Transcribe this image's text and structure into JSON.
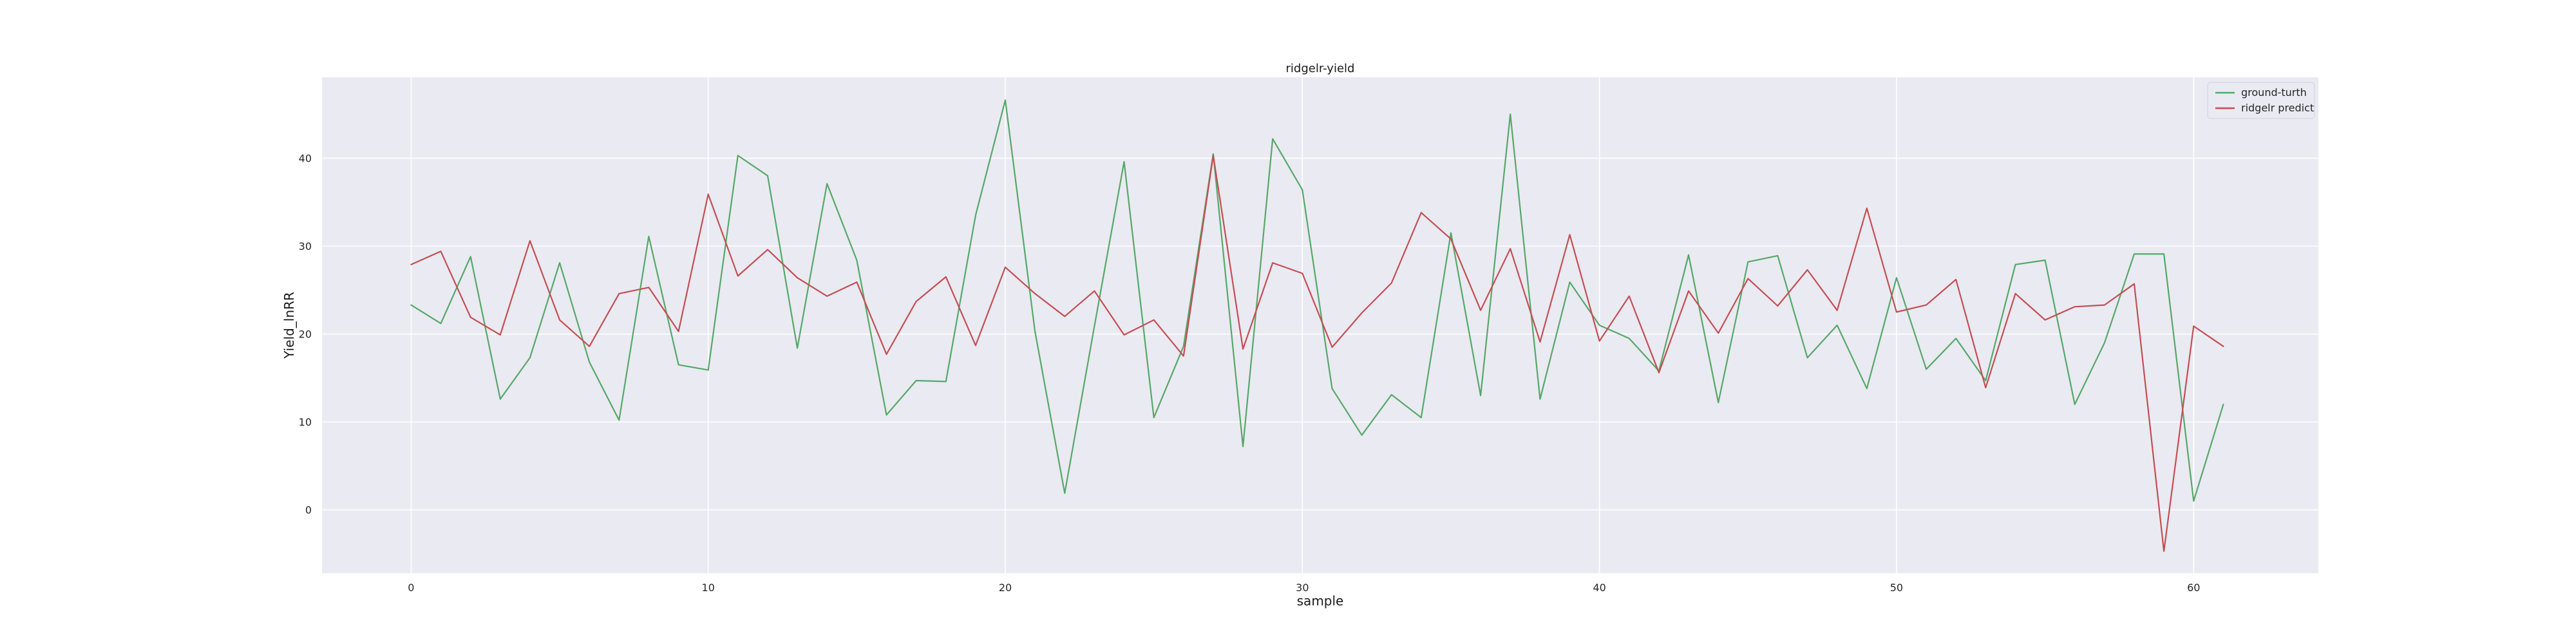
{
  "chart_data": {
    "type": "line",
    "title": "ridgelr-yield",
    "xlabel": "sample",
    "ylabel": "Yield_lnRR",
    "xlim": [
      -3,
      64.2
    ],
    "ylim": [
      -7.2,
      49.2
    ],
    "xticks": [
      0,
      10,
      20,
      30,
      40,
      50,
      60
    ],
    "yticks": [
      0,
      10,
      20,
      30,
      40
    ],
    "grid": true,
    "legend_position": "top-right",
    "series": [
      {
        "name": "ground-turth",
        "color": "#55a868",
        "values": [
          23.3,
          21.2,
          28.8,
          12.6,
          17.3,
          28.1,
          16.8,
          10.2,
          31.1,
          16.5,
          15.9,
          40.3,
          38.0,
          18.4,
          37.1,
          28.4,
          10.8,
          14.7,
          14.6,
          33.5,
          46.6,
          20.3,
          1.9,
          20.9,
          39.6,
          10.5,
          18.6,
          40.5,
          7.2,
          42.2,
          36.4,
          13.8,
          8.5,
          13.1,
          10.5,
          31.5,
          13.0,
          45.0,
          12.6,
          25.9,
          21.0,
          19.5,
          15.8,
          29.0,
          12.2,
          28.2,
          28.9,
          17.3,
          21.0,
          13.8,
          26.4,
          16.0,
          19.5,
          14.7,
          27.9,
          28.4,
          12.0,
          19.0,
          29.1,
          29.1,
          1.0,
          12.0
        ]
      },
      {
        "name": "ridgelr predict",
        "color": "#c44e52",
        "values": [
          27.9,
          29.4,
          21.9,
          19.9,
          30.6,
          21.6,
          18.6,
          24.6,
          25.3,
          20.3,
          35.9,
          26.6,
          29.6,
          26.4,
          24.3,
          25.9,
          17.7,
          23.7,
          26.5,
          18.7,
          27.6,
          24.6,
          22.0,
          24.9,
          19.9,
          21.6,
          17.5,
          40.3,
          18.3,
          28.1,
          26.9,
          18.5,
          22.4,
          25.8,
          33.8,
          30.8,
          22.7,
          29.7,
          19.1,
          31.3,
          19.2,
          24.3,
          15.6,
          24.9,
          20.1,
          26.3,
          23.2,
          27.3,
          22.7,
          34.3,
          22.5,
          23.3,
          26.2,
          13.9,
          24.6,
          21.6,
          23.1,
          23.3,
          25.7,
          -4.7,
          20.9,
          18.6
        ]
      }
    ]
  }
}
